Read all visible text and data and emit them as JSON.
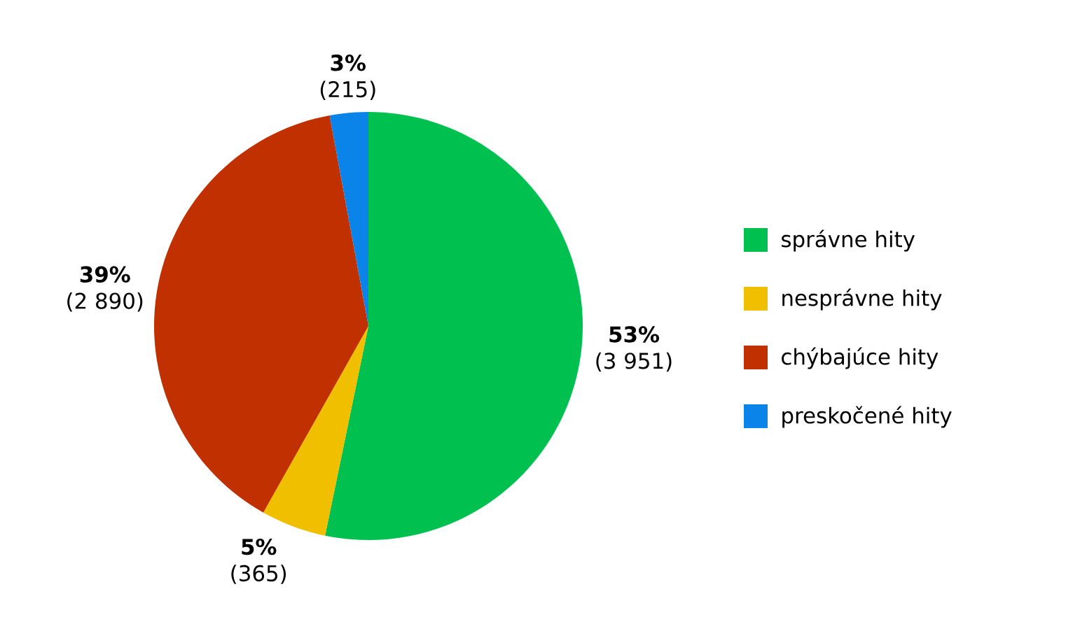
{
  "chart_data": {
    "type": "pie",
    "categories": [
      "správne hity",
      "nesprávne hity",
      "chýbajúce hity",
      "preskočené hity"
    ],
    "values": [
      3951,
      365,
      2890,
      215
    ],
    "value_labels": [
      "(3 951)",
      "(365)",
      "(2 890)",
      "(215)"
    ],
    "annotations": [
      {
        "text": "53%",
        "x": "správne hity"
      },
      {
        "text": "5%",
        "x": "nesprávne hity"
      },
      {
        "text": "39%",
        "x": "chýbajúce hity"
      },
      {
        "text": "3%",
        "x": "preskočené hity"
      }
    ],
    "colors": [
      "#00c050",
      "#f0c000",
      "#c03000",
      "#0a84e8"
    ],
    "legend": "right"
  }
}
